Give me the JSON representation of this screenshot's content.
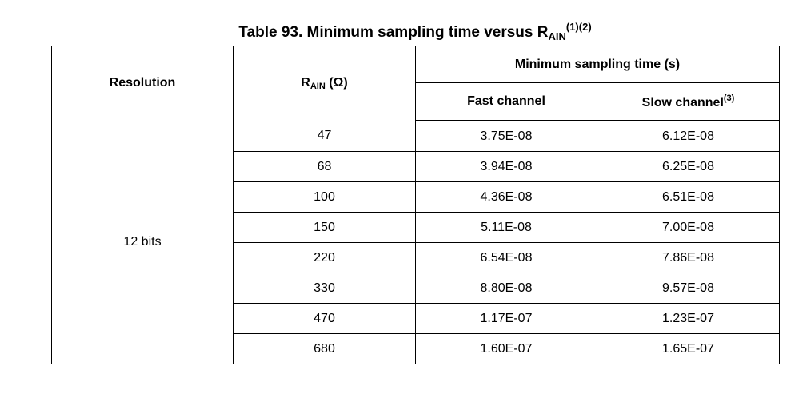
{
  "caption": {
    "prefix": "Table 93. Minimum sampling time versus R",
    "subscript": "AIN",
    "superscript": "(1)(2)"
  },
  "header": {
    "resolution": "Resolution",
    "rain_prefix": "R",
    "rain_sub": "AIN",
    "rain_suffix": " (Ω)",
    "group": "Minimum sampling time (s)",
    "fast": "Fast channel",
    "slow": "Slow channel",
    "slow_sup": "(3)"
  },
  "resolution_value": "12 bits",
  "rows": [
    {
      "rain": "47",
      "fast": "3.75E-08",
      "slow": "6.12E-08"
    },
    {
      "rain": "68",
      "fast": "3.94E-08",
      "slow": "6.25E-08"
    },
    {
      "rain": "100",
      "fast": "4.36E-08",
      "slow": "6.51E-08"
    },
    {
      "rain": "150",
      "fast": "5.11E-08",
      "slow": "7.00E-08"
    },
    {
      "rain": "220",
      "fast": "6.54E-08",
      "slow": "7.86E-08"
    },
    {
      "rain": "330",
      "fast": "8.80E-08",
      "slow": "9.57E-08"
    },
    {
      "rain": "470",
      "fast": "1.17E-07",
      "slow": "1.23E-07"
    },
    {
      "rain": "680",
      "fast": "1.60E-07",
      "slow": "1.65E-07"
    }
  ]
}
